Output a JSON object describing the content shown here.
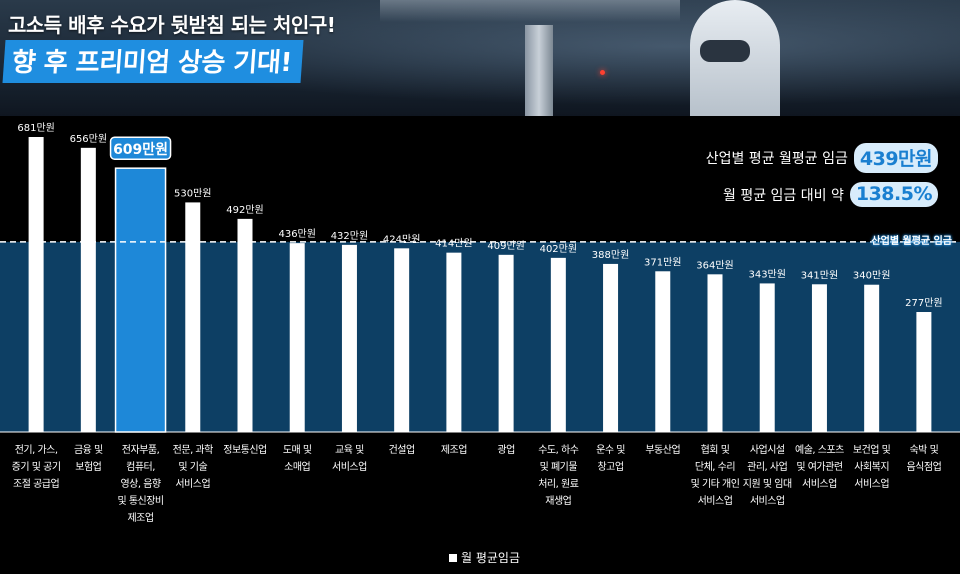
{
  "header": {
    "line1": "고소득 배후 수요가 뒷받침 되는 처인구!",
    "line2": "향 후 프리미엄 상승 기대!"
  },
  "info": {
    "avg_label": "산업별 평균 월평균 임금",
    "avg_value": "439만원",
    "ratio_label": "월 평균 임금 대비 약",
    "ratio_value": "138.5%"
  },
  "colors": {
    "background": "#000000",
    "band": "#0d3f64",
    "bar": "#ffffff",
    "highlight": "#1e88d8"
  },
  "chart_data": {
    "type": "bar",
    "categories": [
      "전기, 가스,\n증기 및 공기\n조절 공급업",
      "금융 및\n보험업",
      "전자부품,\n컴퓨터,\n영상, 음향\n및 통신장비\n제조업",
      "전문, 과학\n및 기술\n서비스업",
      "정보통신업",
      "도매 및\n소매업",
      "교육 및\n서비스업",
      "건설업",
      "제조업",
      "광업",
      "수도, 하수\n및 폐기물\n처리, 원료\n재생업",
      "운수 및\n창고업",
      "부동산업",
      "협회 및\n단체, 수리\n및 기타 개인\n서비스업",
      "사업시설\n관리, 사업\n지원 및 임대\n서비스업",
      "예술, 스포츠\n및 여가관련\n서비스업",
      "보건업 및\n사회복지\n서비스업",
      "숙박 및\n음식점업"
    ],
    "values": [
      681,
      656,
      609,
      530,
      492,
      436,
      432,
      424,
      414,
      409,
      402,
      388,
      371,
      364,
      343,
      341,
      340,
      277
    ],
    "data_labels": [
      "681만원",
      "656만원",
      "609만원",
      "530만원",
      "492만원",
      "436만원",
      "432만원",
      "424만원",
      "414만원",
      "409만원",
      "402만원",
      "388만원",
      "371만원",
      "364만원",
      "343만원",
      "341만원",
      "340만원",
      "277만원"
    ],
    "highlight_index": 2,
    "average_line": {
      "value": 439,
      "label": "산업별 월평균 임금"
    },
    "ylim": [
      0,
      681
    ],
    "legend": {
      "label": "월 평균임금",
      "position": "bottom-center"
    },
    "grid": false
  }
}
